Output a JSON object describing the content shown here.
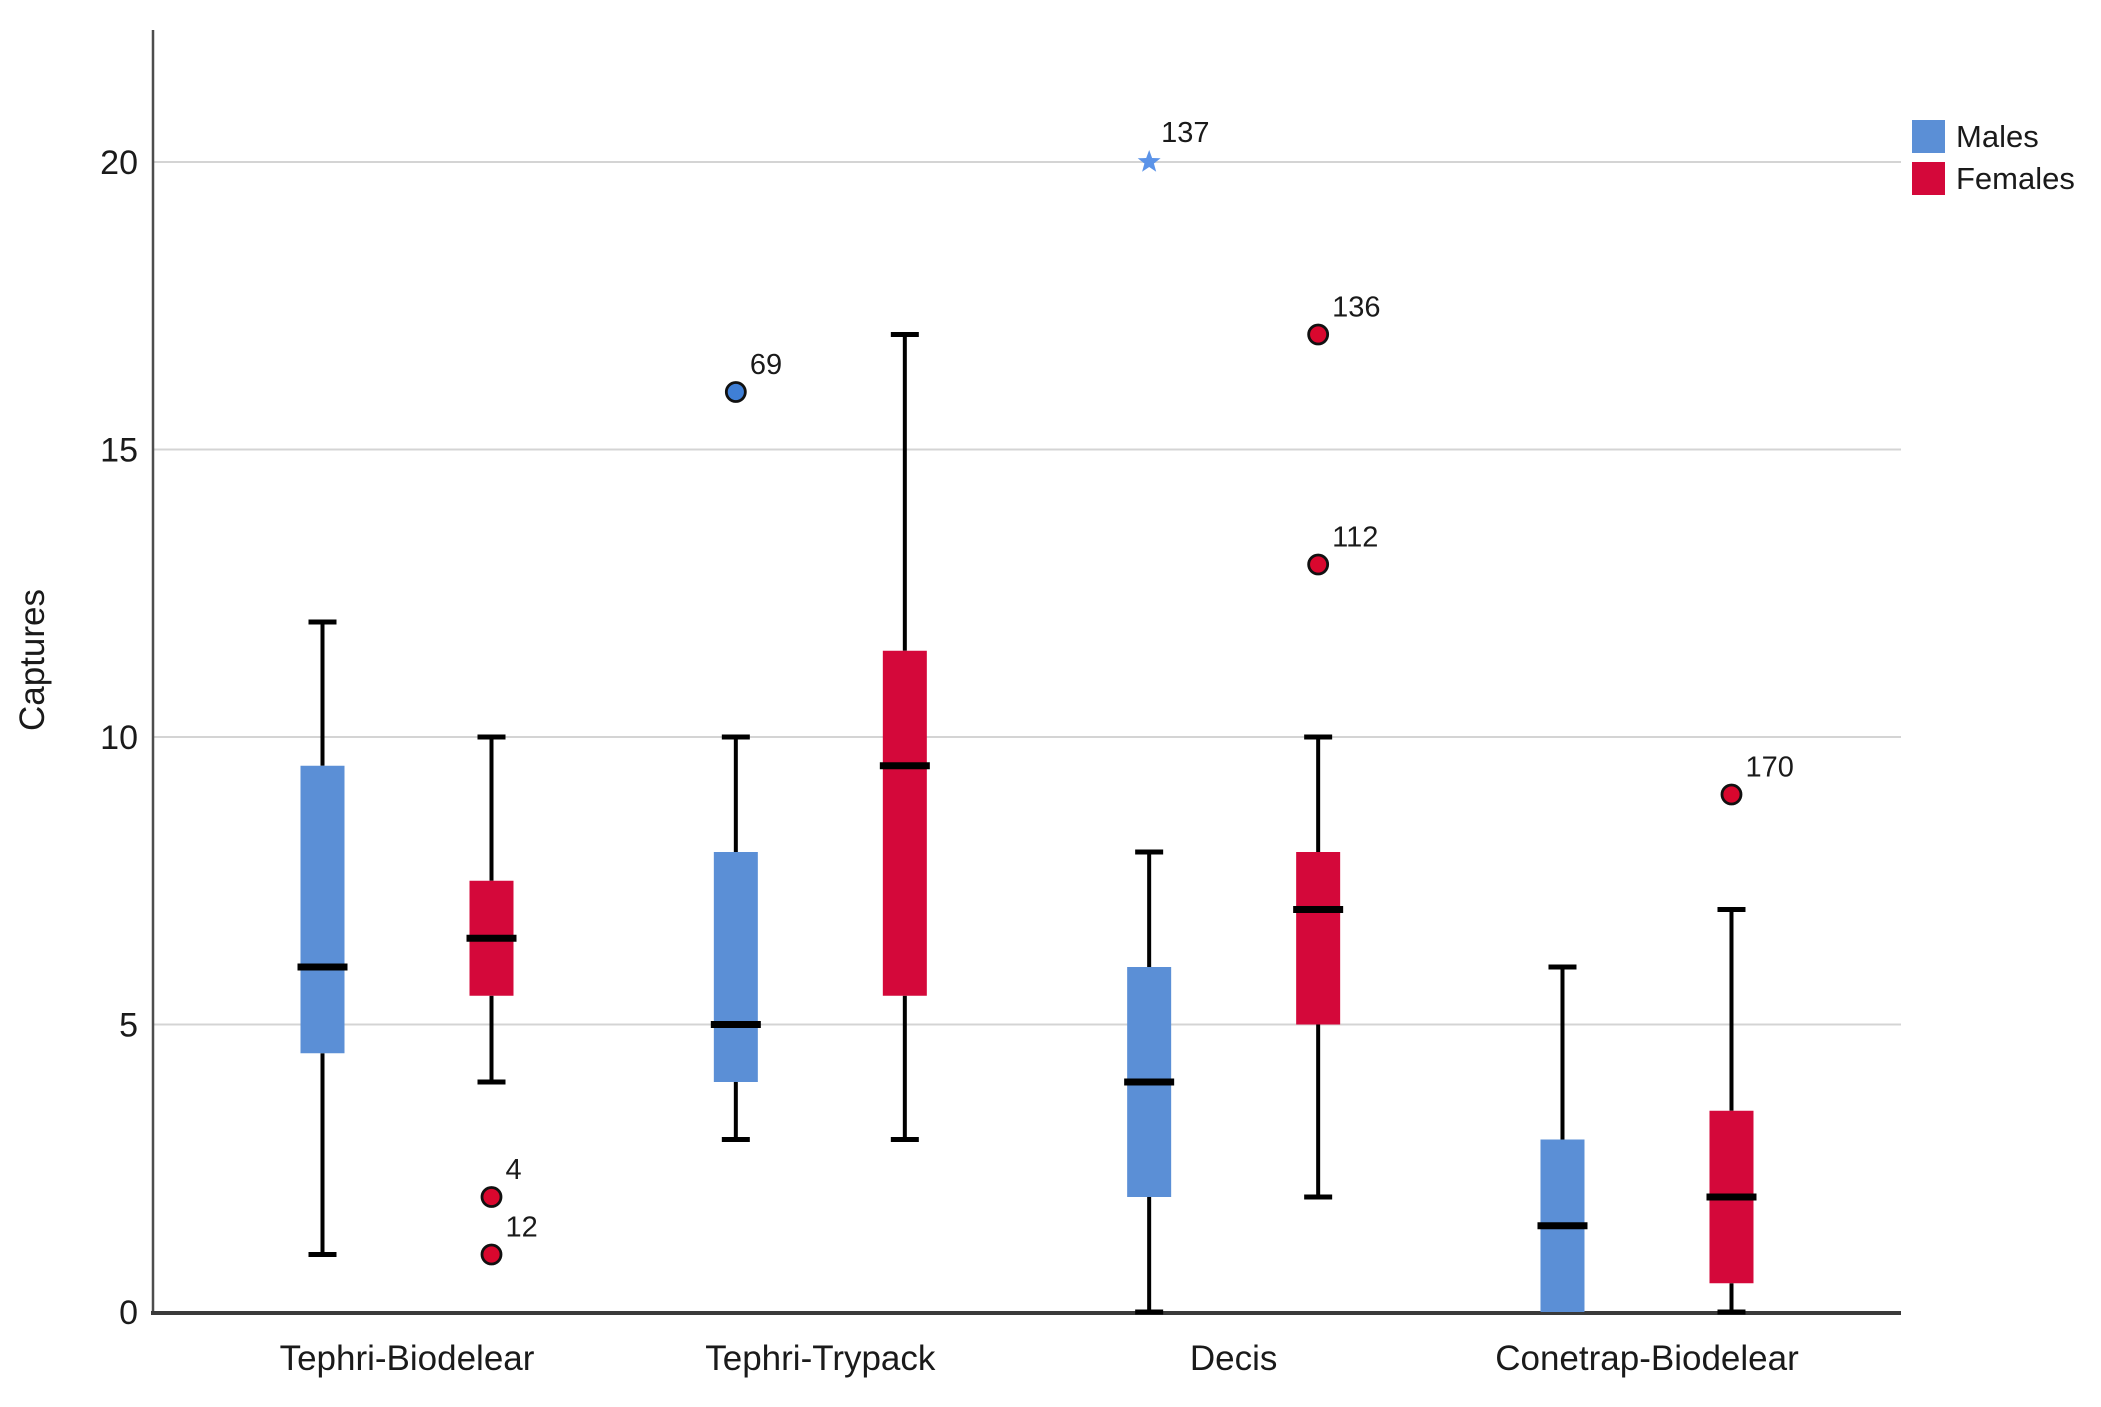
{
  "chart_data": {
    "type": "boxplot",
    "title": "",
    "xlabel": "",
    "ylabel": "Captures",
    "ylim": [
      0,
      22.3
    ],
    "yticks": [
      0,
      5,
      10,
      15,
      20
    ],
    "grid": "horizontal",
    "grid_color": "#D4D4D4",
    "axis_color": "#3A3A3A",
    "categories": [
      "Tephri-Biodelear",
      "Tephri-Trypack",
      "Decis",
      "Conetrap-Biodelear"
    ],
    "legend": {
      "position": "top-right",
      "entries": [
        {
          "label": "Males",
          "color": "#5B8FD6"
        },
        {
          "label": "Females",
          "color": "#D4083A"
        }
      ]
    },
    "series": [
      {
        "name": "Males",
        "box_color": "#5B8FD6",
        "outlier_fill": "#3F7FD6",
        "extreme_fill": "#5B93E8",
        "boxes": [
          {
            "category": "Tephri-Biodelear",
            "low": 1,
            "q1": 4.5,
            "median": 6,
            "q3": 9.5,
            "high": 12,
            "outliers": []
          },
          {
            "category": "Tephri-Trypack",
            "low": 3,
            "q1": 4,
            "median": 5,
            "q3": 8,
            "high": 10,
            "outliers": [
              {
                "value": 16,
                "label": "69",
                "marker": "circle"
              }
            ]
          },
          {
            "category": "Decis",
            "low": 0,
            "q1": 2,
            "median": 4,
            "q3": 6,
            "high": 8,
            "outliers": [
              {
                "value": 20,
                "label": "137",
                "marker": "star"
              }
            ]
          },
          {
            "category": "Conetrap-Biodelear",
            "low": 0,
            "q1": 0,
            "median": 1.5,
            "q3": 3,
            "high": 6,
            "outliers": []
          }
        ]
      },
      {
        "name": "Females",
        "box_color": "#D4083A",
        "outlier_fill": "#D9072E",
        "extreme_fill": "#E8706F",
        "boxes": [
          {
            "category": "Tephri-Biodelear",
            "low": 4,
            "q1": 5.5,
            "median": 6.5,
            "q3": 7.5,
            "high": 10,
            "outliers": [
              {
                "value": 2,
                "label": "4",
                "marker": "circle"
              },
              {
                "value": 1,
                "label": "12",
                "marker": "circle"
              }
            ]
          },
          {
            "category": "Tephri-Trypack",
            "low": 3,
            "q1": 5.5,
            "median": 9.5,
            "q3": 11.5,
            "high": 17,
            "outliers": []
          },
          {
            "category": "Decis",
            "low": 2,
            "q1": 5,
            "median": 7,
            "q3": 8,
            "high": 10,
            "outliers": [
              {
                "value": 17,
                "label": "136",
                "marker": "circle"
              },
              {
                "value": 13,
                "label": "112",
                "marker": "circle"
              }
            ]
          },
          {
            "category": "Conetrap-Biodelear",
            "low": 0,
            "q1": 0.5,
            "median": 2,
            "q3": 3.5,
            "high": 7,
            "outliers": [
              {
                "value": 9,
                "label": "170",
                "marker": "circle"
              }
            ]
          }
        ]
      }
    ]
  }
}
